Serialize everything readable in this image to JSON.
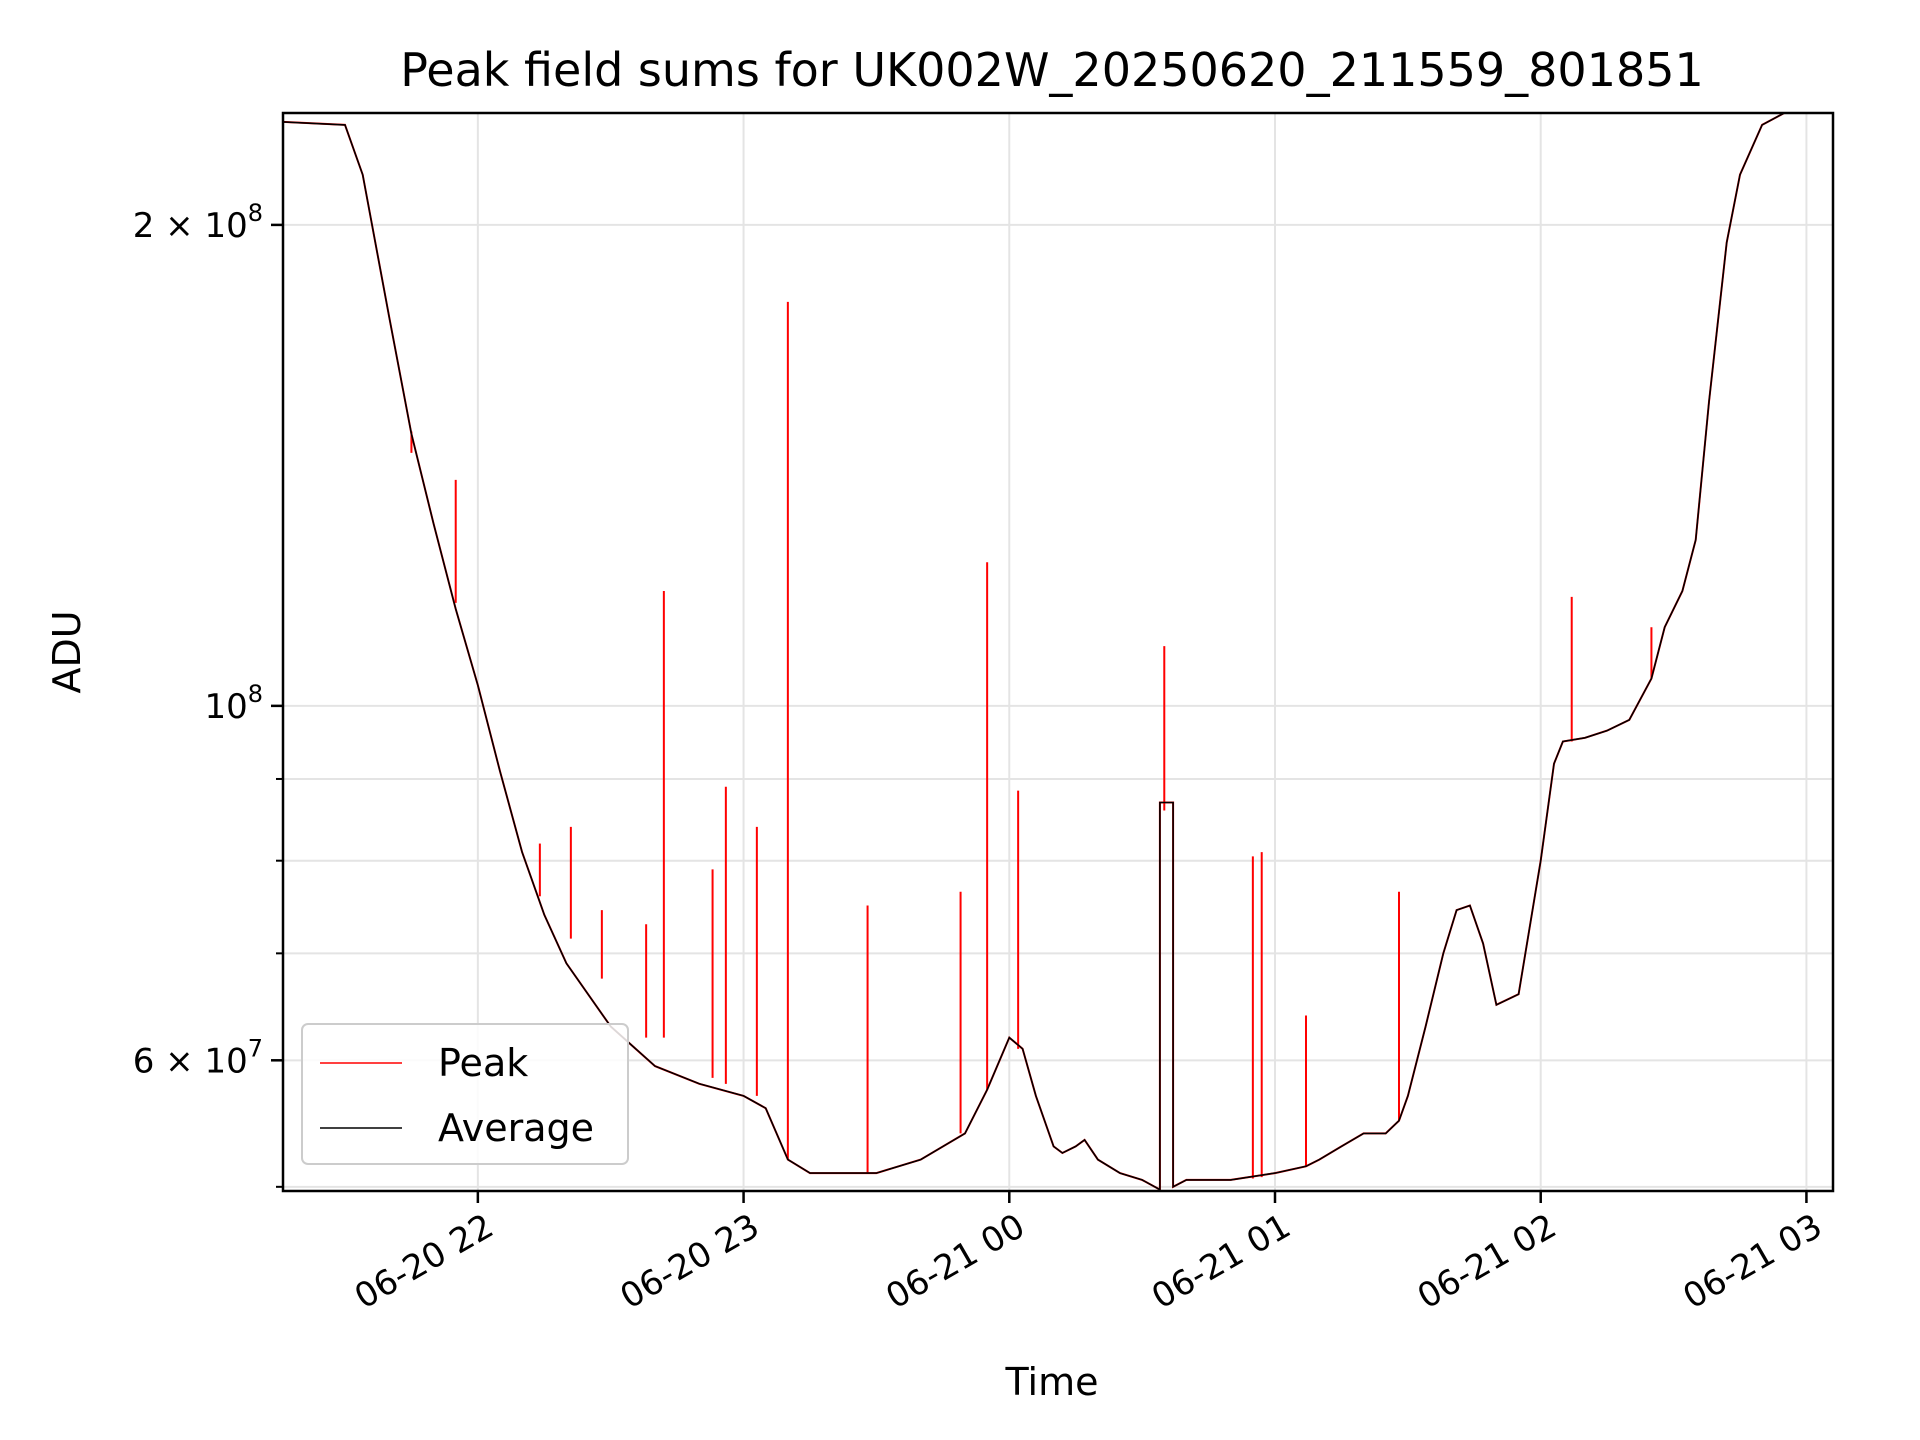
{
  "chart_data": {
    "type": "line",
    "title": "Peak field sums for UK002W_20250620_211559_801851",
    "xlabel": "Time",
    "ylabel": "ADU",
    "y_scale": "log",
    "grid": true,
    "legend_position": "lower-left",
    "xlim": [
      "2025-06-20 21:16",
      "2025-06-21 03:06"
    ],
    "ylim": [
      49700000,
      235000000
    ],
    "x_ticks": [
      {
        "value": "2025-06-20 22:00",
        "label": "06-20 22"
      },
      {
        "value": "2025-06-20 23:00",
        "label": "06-20 23"
      },
      {
        "value": "2025-06-21 00:00",
        "label": "06-21 00"
      },
      {
        "value": "2025-06-21 01:00",
        "label": "06-21 01"
      },
      {
        "value": "2025-06-21 02:00",
        "label": "06-21 02"
      },
      {
        "value": "2025-06-21 03:00",
        "label": "06-21 03"
      }
    ],
    "y_ticks": [
      {
        "value": 60000000,
        "label": "6 × 10⁷",
        "mant": "6 × 10",
        "exp": "7"
      },
      {
        "value": 100000000,
        "label": "10⁸",
        "mant": "10",
        "exp": "8"
      },
      {
        "value": 200000000,
        "label": "2 × 10⁸",
        "mant": "2 × 10",
        "exp": "8"
      }
    ],
    "y_minor_ticks": [
      50000000,
      70000000,
      80000000,
      90000000
    ],
    "series": [
      {
        "name": "Average",
        "color": "#000000",
        "x": [
          "2025-06-20 21:16",
          "2025-06-20 21:30",
          "2025-06-20 21:34",
          "2025-06-20 21:40",
          "2025-06-20 21:45",
          "2025-06-20 21:50",
          "2025-06-20 21:55",
          "2025-06-20 22:00",
          "2025-06-20 22:05",
          "2025-06-20 22:10",
          "2025-06-20 22:15",
          "2025-06-20 22:20",
          "2025-06-20 22:30",
          "2025-06-20 22:40",
          "2025-06-20 22:50",
          "2025-06-20 23:00",
          "2025-06-20 23:05",
          "2025-06-20 23:10",
          "2025-06-20 23:15",
          "2025-06-20 23:20",
          "2025-06-20 23:30",
          "2025-06-20 23:40",
          "2025-06-20 23:50",
          "2025-06-20 23:55",
          "2025-06-21 00:00",
          "2025-06-21 00:03",
          "2025-06-21 00:06",
          "2025-06-21 00:10",
          "2025-06-21 00:12",
          "2025-06-21 00:15",
          "2025-06-21 00:17",
          "2025-06-21 00:20",
          "2025-06-21 00:25",
          "2025-06-21 00:30",
          "2025-06-21 00:34",
          "2025-06-21 00:34",
          "2025-06-21 00:37",
          "2025-06-21 00:37",
          "2025-06-21 00:40",
          "2025-06-21 00:50",
          "2025-06-21 01:00",
          "2025-06-21 01:07",
          "2025-06-21 01:10",
          "2025-06-21 01:15",
          "2025-06-21 01:20",
          "2025-06-21 01:25",
          "2025-06-21 01:28",
          "2025-06-21 01:30",
          "2025-06-21 01:34",
          "2025-06-21 01:38",
          "2025-06-21 01:41",
          "2025-06-21 01:44",
          "2025-06-21 01:47",
          "2025-06-21 01:50",
          "2025-06-21 01:55",
          "2025-06-21 02:00",
          "2025-06-21 02:03",
          "2025-06-21 02:05",
          "2025-06-21 02:10",
          "2025-06-21 02:15",
          "2025-06-21 02:20",
          "2025-06-21 02:25",
          "2025-06-21 02:28",
          "2025-06-21 02:32",
          "2025-06-21 02:35",
          "2025-06-21 02:38",
          "2025-06-21 02:42",
          "2025-06-21 02:45",
          "2025-06-21 02:50",
          "2025-06-21 02:55",
          "2025-06-21 03:06"
        ],
        "values": [
          232000000,
          231000000,
          215000000,
          175000000,
          148000000,
          130000000,
          115000000,
          103000000,
          91000000,
          81000000,
          74000000,
          69000000,
          63000000,
          59500000,
          58000000,
          57000000,
          56000000,
          52000000,
          51000000,
          51000000,
          51000000,
          52000000,
          54000000,
          57500000,
          62000000,
          61000000,
          57000000,
          53000000,
          52500000,
          53000000,
          53500000,
          52000000,
          51000000,
          50500000,
          49800000,
          87000000,
          87000000,
          50000000,
          50500000,
          50500000,
          51000000,
          51500000,
          52000000,
          53000000,
          54000000,
          54000000,
          55000000,
          57000000,
          63000000,
          70000000,
          74500000,
          75000000,
          71000000,
          65000000,
          66000000,
          80000000,
          92000000,
          95000000,
          95500000,
          96500000,
          98000000,
          104000000,
          112000000,
          118000000,
          127000000,
          155000000,
          195000000,
          215000000,
          231000000,
          235000000,
          235000000
        ]
      },
      {
        "name": "Peak",
        "color": "#ff0000",
        "spikes": [
          {
            "x": "2025-06-20 21:45",
            "peak": 148500000,
            "base": 144000000
          },
          {
            "x": "2025-06-20 21:55",
            "peak": 138500000,
            "base": 116000000
          },
          {
            "x": "2025-06-20 22:14",
            "peak": 82000000,
            "base": 76000000
          },
          {
            "x": "2025-06-20 22:21",
            "peak": 84000000,
            "base": 71500000
          },
          {
            "x": "2025-06-20 22:28",
            "peak": 74500000,
            "base": 67500000
          },
          {
            "x": "2025-06-20 22:38",
            "peak": 73000000,
            "base": 62000000
          },
          {
            "x": "2025-06-20 22:42",
            "peak": 118000000,
            "base": 62000000
          },
          {
            "x": "2025-06-20 22:53",
            "peak": 79000000,
            "base": 58500000
          },
          {
            "x": "2025-06-20 22:56",
            "peak": 89000000,
            "base": 58000000
          },
          {
            "x": "2025-06-20 23:03",
            "peak": 84000000,
            "base": 57000000
          },
          {
            "x": "2025-06-20 23:10",
            "peak": 179000000,
            "base": 52000000
          },
          {
            "x": "2025-06-20 23:28",
            "peak": 75000000,
            "base": 51000000
          },
          {
            "x": "2025-06-20 23:49",
            "peak": 76500000,
            "base": 54000000
          },
          {
            "x": "2025-06-20 23:55",
            "peak": 123000000,
            "base": 57500000
          },
          {
            "x": "2025-06-21 00:02",
            "peak": 88500000,
            "base": 61000000
          },
          {
            "x": "2025-06-21 00:35",
            "peak": 109000000,
            "base": 86000000
          },
          {
            "x": "2025-06-21 00:55",
            "peak": 80500000,
            "base": 50600000
          },
          {
            "x": "2025-06-21 00:57",
            "peak": 81000000,
            "base": 50700000
          },
          {
            "x": "2025-06-21 01:07",
            "peak": 64000000,
            "base": 51500000
          },
          {
            "x": "2025-06-21 01:28",
            "peak": 76500000,
            "base": 55000000
          },
          {
            "x": "2025-06-21 02:07",
            "peak": 117000000,
            "base": 95000000
          },
          {
            "x": "2025-06-21 02:25",
            "peak": 112000000,
            "base": 104000000
          }
        ]
      }
    ]
  }
}
